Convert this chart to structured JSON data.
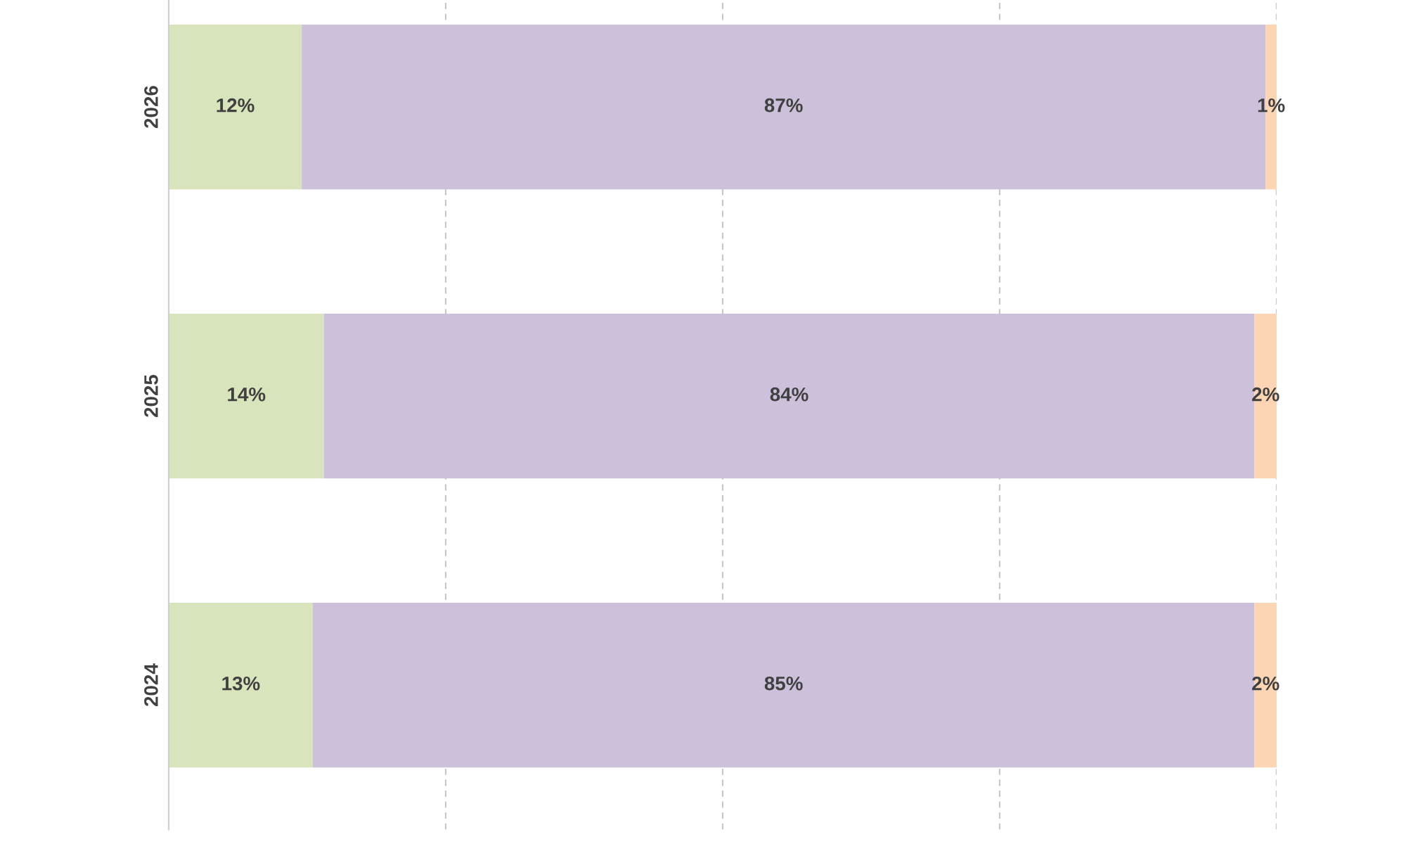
{
  "chart_data": {
    "type": "bar",
    "orientation": "horizontal",
    "stacked": true,
    "categories": [
      "2026",
      "2025",
      "2024"
    ],
    "series": [
      {
        "color": "#d8e4bc",
        "values": [
          12,
          14,
          13
        ],
        "value_labels": [
          "12%",
          "14%",
          "13%"
        ]
      },
      {
        "color": "#ccc0da",
        "values": [
          87,
          84,
          85
        ],
        "value_labels": [
          "87%",
          "84%",
          "85%"
        ]
      },
      {
        "color": "#fcd5b4",
        "values": [
          1,
          2,
          2
        ],
        "value_labels": [
          "1%",
          "2%",
          "2%"
        ]
      }
    ],
    "xlim": [
      0,
      100
    ],
    "xticks": [
      {
        "value": 25,
        "label": null
      },
      {
        "value": 50,
        "label": null
      },
      {
        "value": 75,
        "label": null
      },
      {
        "value": 100,
        "label": null
      }
    ],
    "grid": "x",
    "tick_labels": "y"
  }
}
